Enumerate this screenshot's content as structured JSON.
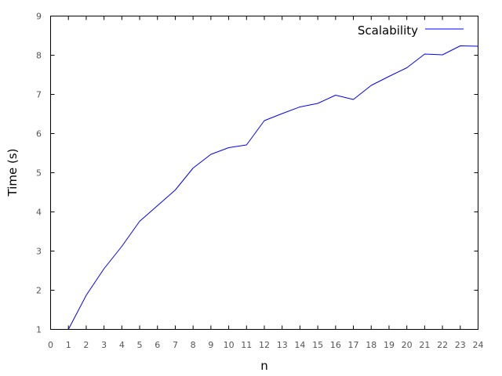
{
  "chart_data": {
    "type": "line",
    "title": "",
    "xlabel": "n",
    "ylabel": "Time (s)",
    "xlim": [
      0,
      24
    ],
    "ylim": [
      1,
      9
    ],
    "xticks": [
      "0",
      "1",
      "2",
      "3",
      "4",
      "5",
      "6",
      "7",
      "8",
      "9",
      "10",
      "11",
      "12",
      "13",
      "14",
      "15",
      "16",
      "17",
      "18",
      "19",
      "20",
      "21",
      "22",
      "23",
      "24"
    ],
    "yticks": [
      "1",
      "2",
      "3",
      "4",
      "5",
      "6",
      "7",
      "8",
      "9"
    ],
    "grid": false,
    "legend_position": "top-right",
    "series": [
      {
        "name": "Scalability",
        "color": "#0000ff",
        "x": [
          1,
          2,
          3,
          4,
          5,
          6,
          7,
          8,
          9,
          10,
          11,
          12,
          13,
          14,
          15,
          16,
          17,
          18,
          19,
          20,
          21,
          22,
          23,
          24
        ],
        "y": [
          1.0,
          1.87,
          2.55,
          3.12,
          3.76,
          4.16,
          4.56,
          5.12,
          5.47,
          5.64,
          5.71,
          6.33,
          6.51,
          6.68,
          6.77,
          6.98,
          6.87,
          7.23,
          7.46,
          7.68,
          8.03,
          8.01,
          8.24,
          8.23
        ]
      }
    ]
  }
}
